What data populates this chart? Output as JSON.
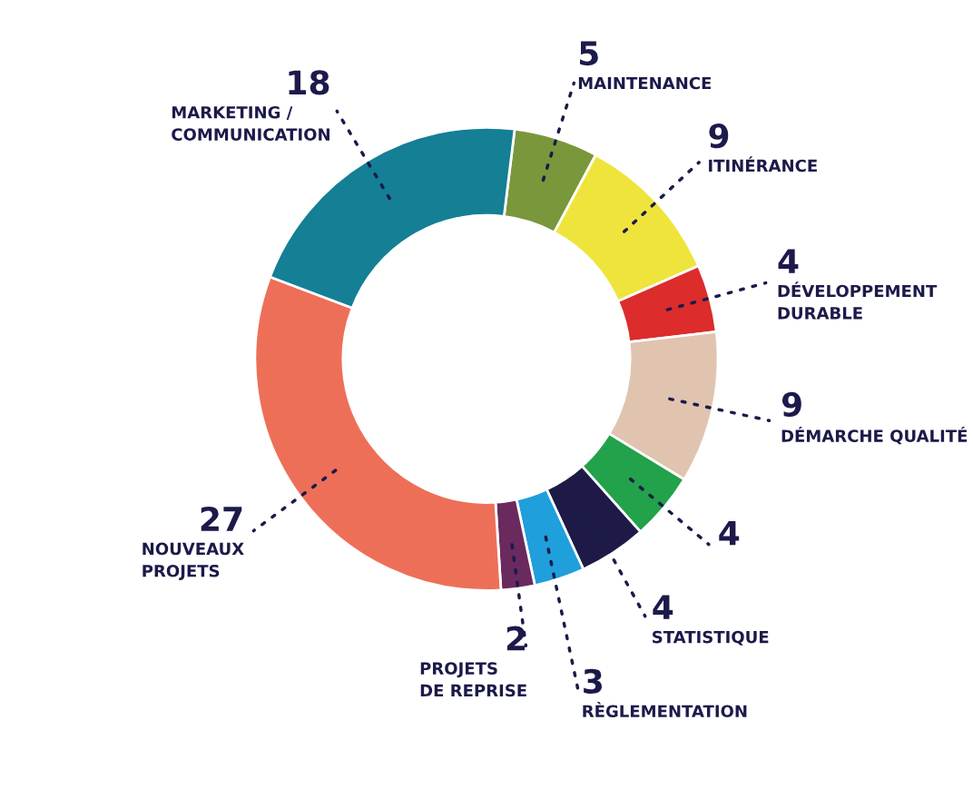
{
  "chart_data": {
    "type": "donut",
    "categories": [
      "MAINTENANCE",
      "ITINÉRANCE",
      "DÉVELOPPEMENT\nDURABLE",
      "DÉMARCHE QUALITÉ",
      null,
      "STATISTIQUE",
      "RÈGLEMENTATION",
      "PROJETS\nDE REPRISE",
      "NOUVEAUX\nPROJETS",
      "MARKETING /\nCOMMUNICATION"
    ],
    "values": [
      5,
      9,
      4,
      9,
      4,
      4,
      3,
      2,
      27,
      18
    ],
    "colors": [
      "#7a973b",
      "#efe43c",
      "#dc2c2c",
      "#e0c4b0",
      "#22a24a",
      "#1e1a48",
      "#1f9fdc",
      "#6a2a5e",
      "#ee6f58",
      "#147f95"
    ],
    "data_labels": true
  }
}
